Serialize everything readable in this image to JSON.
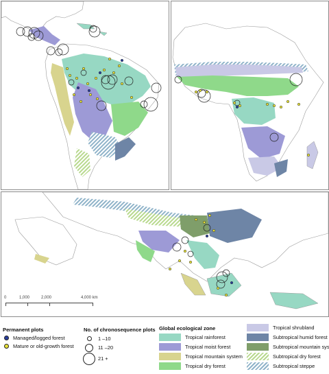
{
  "scale_bar": {
    "ticks": [
      "0",
      "1,000",
      "2,000",
      "4,000 km"
    ]
  },
  "legend": {
    "permanent_plots": {
      "title": "Permanent plots",
      "items": [
        {
          "label": "Managed/logged forest",
          "color": "#2b3f9c"
        },
        {
          "label": "Mature or old-growth forest",
          "color": "#e8e23a"
        }
      ]
    },
    "chronosequence": {
      "title": "No. of chronosequence plots",
      "items": [
        {
          "label": "1 –10"
        },
        {
          "label": "11 –20"
        },
        {
          "label": "21 +"
        }
      ]
    },
    "ecological_zone": {
      "title": "Global ecological zone",
      "items": [
        {
          "label": "Tropical rainforest",
          "color": "#97d8c3",
          "pattern": "solid"
        },
        {
          "label": "Tropical moist forest",
          "color": "#9d9ad6",
          "pattern": "solid"
        },
        {
          "label": "Tropical mountain system",
          "color": "#d8d48e",
          "pattern": "solid"
        },
        {
          "label": "Tropical dry forest",
          "color": "#8fd98a",
          "pattern": "solid"
        },
        {
          "label": "Tropical shrubland",
          "color": "#c9c9e6",
          "pattern": "solid"
        },
        {
          "label": "Subtropical humid forest",
          "color": "#6e85a6",
          "pattern": "solid"
        },
        {
          "label": "Subtropical mountain system",
          "color": "#7f9e6a",
          "pattern": "solid"
        },
        {
          "label": "Subtropical dry forest",
          "color": "#b8d98e",
          "pattern": "hatch"
        },
        {
          "label": "Subtropical steppe",
          "color": "#8fb3c9",
          "pattern": "hatch"
        }
      ]
    }
  },
  "colors": {
    "land": "#ffffff",
    "outline": "#9a9a9a",
    "panel_border": "#8a8a8a"
  }
}
